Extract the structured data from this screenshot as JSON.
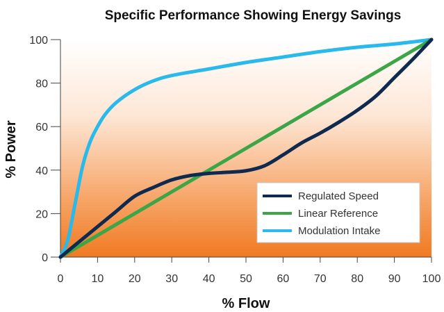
{
  "chart_data": {
    "type": "line",
    "title": "Specific Performance Showing Energy Savings",
    "xlabel": "% Flow",
    "ylabel": "% Power",
    "xlim": [
      0,
      100
    ],
    "ylim": [
      0,
      100
    ],
    "xticks": [
      0,
      10,
      20,
      30,
      40,
      50,
      60,
      70,
      80,
      90,
      100
    ],
    "yticks": [
      0,
      20,
      40,
      60,
      80,
      100
    ],
    "grid": false,
    "background": "vertical gradient from white (top) to orange (bottom)",
    "legend_position": "bottom-right",
    "series": [
      {
        "name": "Regulated Speed",
        "color": "#0f2a4f",
        "x": [
          0,
          5,
          10,
          15,
          20,
          25,
          30,
          35,
          40,
          45,
          50,
          55,
          60,
          65,
          70,
          75,
          80,
          85,
          90,
          95,
          100
        ],
        "y": [
          0,
          7,
          14,
          21,
          28,
          32,
          35.5,
          37.5,
          38.5,
          39,
          39.7,
          42,
          47,
          52.5,
          57,
          62,
          67.5,
          74,
          82.5,
          91,
          100
        ]
      },
      {
        "name": "Linear Reference",
        "color": "#3aa648",
        "x": [
          0,
          100
        ],
        "y": [
          0,
          100
        ]
      },
      {
        "name": "Modulation Intake",
        "color": "#29b9ea",
        "x": [
          0,
          2,
          4,
          6,
          8,
          10,
          12,
          15,
          20,
          25,
          30,
          40,
          50,
          60,
          70,
          80,
          90,
          100
        ],
        "y": [
          0,
          8,
          25,
          42,
          53,
          60,
          65.5,
          71,
          77,
          81,
          83.5,
          86.5,
          89.5,
          92,
          94.5,
          96.5,
          98,
          100
        ]
      }
    ]
  }
}
